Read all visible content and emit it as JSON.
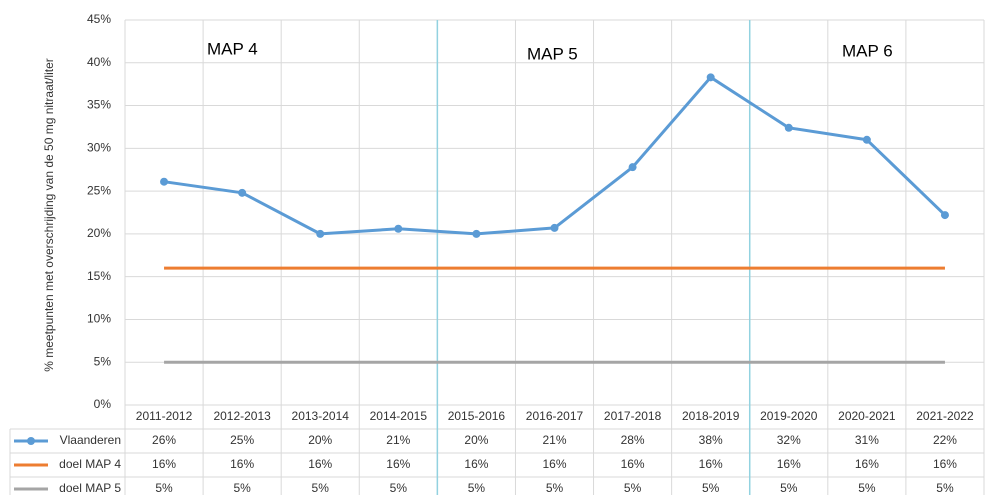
{
  "chart_data": {
    "type": "line",
    "y_label": "% meetpunten met overschrijding van de 50 mg nitraat/liter",
    "annotations": [
      "MAP 4",
      "MAP 5",
      "MAP 6"
    ],
    "categories": [
      "2011-2012",
      "2012-2013",
      "2013-2014",
      "2014-2015",
      "2015-2016",
      "2016-2017",
      "2017-2018",
      "2018-2019",
      "2019-2020",
      "2020-2021",
      "2021-2022"
    ],
    "series": [
      {
        "name": "Vlaanderen",
        "color": "#5b9bd5",
        "markers": true,
        "values": [
          26.1,
          24.8,
          20,
          20.6,
          20,
          20.7,
          27.8,
          38.3,
          32.4,
          31,
          22.2
        ],
        "value_labels": [
          "26%",
          "25%",
          "20%",
          "21%",
          "20%",
          "21%",
          "28%",
          "38%",
          "32%",
          "31%",
          "22%"
        ]
      },
      {
        "name": "doel MAP 4",
        "color": "#ed7d31",
        "markers": false,
        "values": [
          16,
          16,
          16,
          16,
          16,
          16,
          16,
          16,
          16,
          16,
          16
        ],
        "value_labels": [
          "16%",
          "16%",
          "16%",
          "16%",
          "16%",
          "16%",
          "16%",
          "16%",
          "16%",
          "16%",
          "16%"
        ]
      },
      {
        "name": "doel MAP 5",
        "color": "#a5a5a5",
        "markers": false,
        "values": [
          5,
          5,
          5,
          5,
          5,
          5,
          5,
          5,
          5,
          5,
          5
        ],
        "value_labels": [
          "5%",
          "5%",
          "5%",
          "5%",
          "5%",
          "5%",
          "5%",
          "5%",
          "5%",
          "5%",
          "5%"
        ]
      }
    ],
    "ylim": [
      0,
      45
    ],
    "yticks": [
      {
        "value": 0,
        "label": "0%"
      },
      {
        "value": 5,
        "label": "5%"
      },
      {
        "value": 10,
        "label": "10%"
      },
      {
        "value": 15,
        "label": "15%"
      },
      {
        "value": 20,
        "label": "20%"
      },
      {
        "value": 25,
        "label": "25%"
      },
      {
        "value": 30,
        "label": "30%"
      },
      {
        "value": 35,
        "label": "35%"
      },
      {
        "value": 40,
        "label": "40%"
      },
      {
        "value": 45,
        "label": "45%"
      }
    ],
    "grid": true
  }
}
